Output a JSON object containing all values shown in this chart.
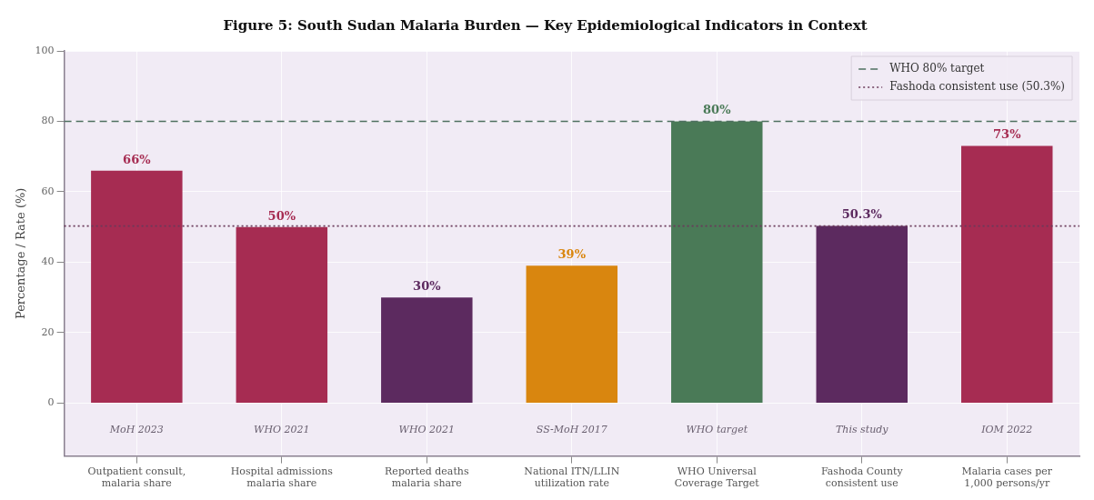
{
  "chart_data": {
    "type": "bar",
    "title": "Figure 5: South Sudan Malaria Burden — Key Epidemiological Indicators in Context",
    "ylabel": "Percentage / Rate (%)",
    "categories": [
      "Outpatient consult, malaria share",
      "Hospital admissions malaria share",
      "Reported deaths malaria share",
      "National ITN/LLIN utilization rate",
      "WHO Universal Coverage Target",
      "Fashoda County consistent use",
      "Malaria cases per 1,000 persons/yr"
    ],
    "values": [
      66,
      50,
      30,
      39,
      80,
      50.3,
      73
    ],
    "colors": [
      "#a62c52",
      "#a62c52",
      "#5c2a5f",
      "#d9860f",
      "#4a7a57",
      "#5c2a5f",
      "#a62c52"
    ],
    "value_labels": [
      "66%",
      "50%",
      "30%",
      "39%",
      "80%",
      "50.3%",
      "73%"
    ],
    "ylim": [
      -15,
      100
    ],
    "yticks": [
      0,
      20,
      40,
      60,
      80,
      100
    ],
    "grid": true,
    "legend": "top right",
    "ref_lines": [
      {
        "axis": "y",
        "value": 80,
        "label": "WHO 80% target",
        "color": "#4f7060",
        "line_style": "dashed"
      },
      {
        "axis": "y",
        "value": 50.3,
        "label": "Fashoda consistent use (50.3%)",
        "color": "#6a3a5a",
        "line_style": "dotted"
      }
    ],
    "annotations": [
      "MoH 2023",
      "WHO 2021",
      "WHO 2021",
      "SS-MoH 2017",
      "WHO target",
      "This study",
      "IOM 2022"
    ]
  }
}
